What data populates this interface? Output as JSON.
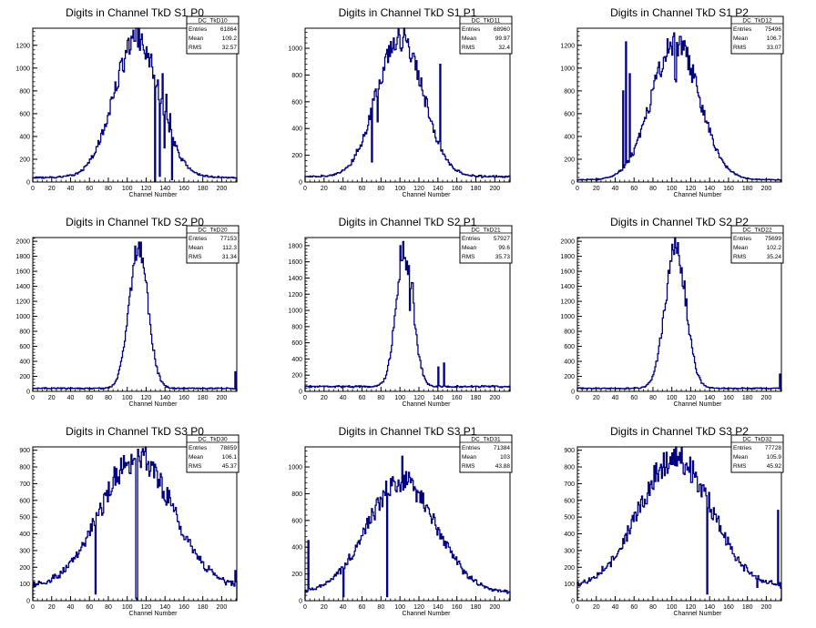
{
  "chart_data": [
    {
      "type": "histogram",
      "title": "Digits in Channel TkD S1 P0",
      "xlabel": "Channel Number",
      "xlim": [
        0,
        216
      ],
      "ylim": [
        0,
        1350
      ],
      "xticks": [
        0,
        20,
        40,
        60,
        80,
        100,
        120,
        140,
        160,
        180,
        200
      ],
      "yticks": [
        0,
        200,
        400,
        600,
        800,
        1000,
        1200
      ],
      "stats": {
        "name": "DC_TkD10",
        "rows": [
          {
            "label": "Entries",
            "value": "61864"
          },
          {
            "label": "Mean",
            "value": "109.2"
          },
          {
            "label": "RMS",
            "value": "32.57"
          }
        ]
      },
      "shape": {
        "center": 110,
        "width": 24,
        "peak": 1250,
        "base": 40
      },
      "spikes": [
        [
          129,
          5
        ],
        [
          131,
          850
        ],
        [
          134,
          50
        ],
        [
          137,
          950
        ],
        [
          139,
          300
        ],
        [
          141,
          770
        ],
        [
          145,
          600
        ],
        [
          147,
          20
        ]
      ]
    },
    {
      "type": "histogram",
      "title": "Digits in Channel TkD S1 P1",
      "xlabel": "Channel Number",
      "xlim": [
        0,
        216
      ],
      "ylim": [
        0,
        1150
      ],
      "xticks": [
        0,
        20,
        40,
        60,
        80,
        100,
        120,
        140,
        160,
        180,
        200
      ],
      "yticks": [
        0,
        200,
        400,
        600,
        800,
        1000
      ],
      "stats": {
        "name": "DC_TkD11",
        "rows": [
          {
            "label": "Entries",
            "value": "68960"
          },
          {
            "label": "Mean",
            "value": "99.97"
          },
          {
            "label": "RMS",
            "value": "32.4"
          }
        ]
      },
      "shape": {
        "center": 100,
        "width": 24,
        "peak": 1110,
        "base": 40
      },
      "spikes": [
        [
          64,
          360
        ],
        [
          70,
          150
        ],
        [
          76,
          450
        ],
        [
          100,
          1000
        ],
        [
          101,
          980
        ],
        [
          142,
          880
        ]
      ]
    },
    {
      "type": "histogram",
      "title": "Digits in Channel TkD S1 P2",
      "xlabel": "Channel Number",
      "xlim": [
        0,
        216
      ],
      "ylim": [
        0,
        1350
      ],
      "xticks": [
        0,
        20,
        40,
        60,
        80,
        100,
        120,
        140,
        160,
        180,
        200
      ],
      "yticks": [
        0,
        200,
        400,
        600,
        800,
        1000,
        1200
      ],
      "stats": {
        "name": "DC_TkD12",
        "rows": [
          {
            "label": "Entries",
            "value": "75496"
          },
          {
            "label": "Mean",
            "value": "106.7"
          },
          {
            "label": "RMS",
            "value": "33.07"
          }
        ]
      },
      "shape": {
        "center": 104,
        "width": 25,
        "peak": 1230,
        "base": 20
      },
      "spikes": [
        [
          20,
          15
        ],
        [
          48,
          800
        ],
        [
          51,
          1230
        ],
        [
          55,
          950
        ],
        [
          103,
          900
        ],
        [
          104,
          880
        ]
      ]
    },
    {
      "type": "histogram",
      "title": "Digits in Channel TkD S2 P0",
      "xlabel": "Channel Number",
      "xlim": [
        0,
        216
      ],
      "ylim": [
        0,
        2050
      ],
      "xticks": [
        0,
        20,
        40,
        60,
        80,
        100,
        120,
        140,
        160,
        180,
        200
      ],
      "yticks": [
        0,
        200,
        400,
        600,
        800,
        1000,
        1200,
        1400,
        1600,
        1800,
        2000
      ],
      "stats": {
        "name": "DC_TkD20",
        "rows": [
          {
            "label": "Entries",
            "value": "77153"
          },
          {
            "label": "Mean",
            "value": "112.3"
          },
          {
            "label": "RMS",
            "value": "31.34"
          }
        ]
      },
      "shape": {
        "center": 112,
        "width": 10,
        "peak": 1900,
        "base": 40
      },
      "spikes": [
        [
          214,
          260
        ]
      ]
    },
    {
      "type": "histogram",
      "title": "Digits in Channel TkD S2 P1",
      "xlabel": "Channel Number",
      "xlim": [
        0,
        216
      ],
      "ylim": [
        0,
        1900
      ],
      "xticks": [
        0,
        20,
        40,
        60,
        80,
        100,
        120,
        140,
        160,
        180,
        200
      ],
      "yticks": [
        0,
        200,
        400,
        600,
        800,
        1000,
        1200,
        1400,
        1600,
        1800
      ],
      "stats": {
        "name": "DC_TkD21",
        "rows": [
          {
            "label": "Entries",
            "value": "57927"
          },
          {
            "label": "Mean",
            "value": "99.6"
          },
          {
            "label": "RMS",
            "value": "35.73"
          }
        ]
      },
      "shape": {
        "center": 105,
        "width": 9,
        "peak": 1700,
        "base": 60
      },
      "spikes": [
        [
          100,
          1800
        ],
        [
          103,
          1850
        ],
        [
          106,
          1500
        ],
        [
          110,
          1000
        ],
        [
          113,
          1340
        ],
        [
          117,
          700
        ],
        [
          140,
          300
        ],
        [
          146,
          350
        ]
      ]
    },
    {
      "type": "histogram",
      "title": "Digits in Channel TkD S2 P2",
      "xlabel": "Channel Number",
      "xlim": [
        0,
        216
      ],
      "ylim": [
        0,
        2050
      ],
      "xticks": [
        0,
        20,
        40,
        60,
        80,
        100,
        120,
        140,
        160,
        180,
        200
      ],
      "yticks": [
        0,
        200,
        400,
        600,
        800,
        1000,
        1200,
        1400,
        1600,
        1800,
        2000
      ],
      "stats": {
        "name": "DC_TkD22",
        "rows": [
          {
            "label": "Entries",
            "value": "75699"
          },
          {
            "label": "Mean",
            "value": "102.2"
          },
          {
            "label": "RMS",
            "value": "35.24"
          }
        ]
      },
      "shape": {
        "center": 104,
        "width": 11,
        "peak": 1930,
        "base": 40
      },
      "spikes": [
        [
          214,
          230
        ]
      ]
    },
    {
      "type": "histogram",
      "title": "Digits in Channel TkD S3 P0",
      "xlabel": "Channel Number",
      "xlim": [
        0,
        216
      ],
      "ylim": [
        0,
        920
      ],
      "xticks": [
        0,
        20,
        40,
        60,
        80,
        100,
        120,
        140,
        160,
        180,
        200
      ],
      "yticks": [
        0,
        100,
        200,
        300,
        400,
        500,
        600,
        700,
        800,
        900
      ],
      "stats": {
        "name": "DC_TkD30",
        "rows": [
          {
            "label": "Entries",
            "value": "78859"
          },
          {
            "label": "Mean",
            "value": "106.1"
          },
          {
            "label": "RMS",
            "value": "45.37"
          }
        ]
      },
      "shape": {
        "center": 110,
        "width": 38,
        "peak": 860,
        "base": 80
      },
      "spikes": [
        [
          66,
          40
        ],
        [
          109,
          15
        ],
        [
          110,
          5
        ],
        [
          214,
          180
        ]
      ]
    },
    {
      "type": "histogram",
      "title": "Digits in Channel TkD S3 P1",
      "xlabel": "Channel Number",
      "xlim": [
        0,
        216
      ],
      "ylim": [
        0,
        1150
      ],
      "xticks": [
        0,
        20,
        40,
        60,
        80,
        100,
        120,
        140,
        160,
        180,
        200
      ],
      "yticks": [
        0,
        200,
        400,
        600,
        800,
        1000
      ],
      "stats": {
        "name": "DC_TkD31",
        "rows": [
          {
            "label": "Entries",
            "value": "71384"
          },
          {
            "label": "Mean",
            "value": "103"
          },
          {
            "label": "RMS",
            "value": "43.88"
          }
        ]
      },
      "shape": {
        "center": 102,
        "width": 36,
        "peak": 900,
        "base": 60
      },
      "spikes": [
        [
          3,
          450
        ],
        [
          40,
          30
        ],
        [
          86,
          30
        ],
        [
          102,
          1080
        ]
      ]
    },
    {
      "type": "histogram",
      "title": "Digits in Channel TkD S3 P2",
      "xlabel": "Channel Number",
      "xlim": [
        0,
        216
      ],
      "ylim": [
        0,
        920
      ],
      "xticks": [
        0,
        20,
        40,
        60,
        80,
        100,
        120,
        140,
        160,
        180,
        200
      ],
      "yticks": [
        0,
        100,
        200,
        300,
        400,
        500,
        600,
        700,
        800,
        900
      ],
      "stats": {
        "name": "DC_TkD32",
        "rows": [
          {
            "label": "Entries",
            "value": "77728"
          },
          {
            "label": "Mean",
            "value": "105.9"
          },
          {
            "label": "RMS",
            "value": "45.92"
          }
        ]
      },
      "shape": {
        "center": 104,
        "width": 38,
        "peak": 860,
        "base": 80
      },
      "spikes": [
        [
          137,
          40
        ],
        [
          190,
          80
        ],
        [
          212,
          540
        ]
      ]
    }
  ],
  "colors": {
    "line": "#000080",
    "axis": "#000000",
    "background": "#ffffff"
  }
}
